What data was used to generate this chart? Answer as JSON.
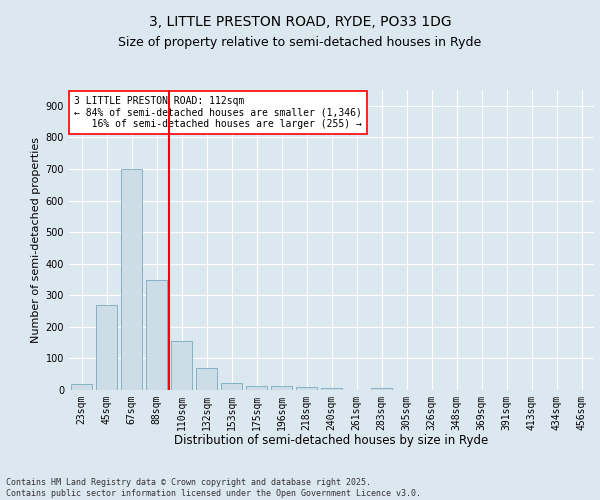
{
  "title1": "3, LITTLE PRESTON ROAD, RYDE, PO33 1DG",
  "title2": "Size of property relative to semi-detached houses in Ryde",
  "xlabel": "Distribution of semi-detached houses by size in Ryde",
  "ylabel": "Number of semi-detached properties",
  "categories": [
    "23sqm",
    "45sqm",
    "67sqm",
    "88sqm",
    "110sqm",
    "132sqm",
    "153sqm",
    "175sqm",
    "196sqm",
    "218sqm",
    "240sqm",
    "261sqm",
    "283sqm",
    "305sqm",
    "326sqm",
    "348sqm",
    "369sqm",
    "391sqm",
    "413sqm",
    "434sqm",
    "456sqm"
  ],
  "values": [
    20,
    270,
    700,
    348,
    155,
    70,
    22,
    12,
    12,
    8,
    5,
    0,
    5,
    0,
    0,
    0,
    0,
    0,
    0,
    0,
    0
  ],
  "bar_color": "#ccdde8",
  "bar_edge_color": "#7aaabf",
  "vline_index": 4,
  "vline_color": "red",
  "annotation_text": "3 LITTLE PRESTON ROAD: 112sqm\n← 84% of semi-detached houses are smaller (1,346)\n   16% of semi-detached houses are larger (255) →",
  "annotation_box_color": "white",
  "annotation_box_edge": "red",
  "ylim": [
    0,
    950
  ],
  "yticks": [
    0,
    100,
    200,
    300,
    400,
    500,
    600,
    700,
    800,
    900
  ],
  "bg_color": "#dce8f0",
  "plot_bg_color": "#dce8f0",
  "footer": "Contains HM Land Registry data © Crown copyright and database right 2025.\nContains public sector information licensed under the Open Government Licence v3.0.",
  "title1_fontsize": 10,
  "title2_fontsize": 9,
  "xlabel_fontsize": 8.5,
  "ylabel_fontsize": 8,
  "tick_fontsize": 7,
  "footer_fontsize": 6
}
